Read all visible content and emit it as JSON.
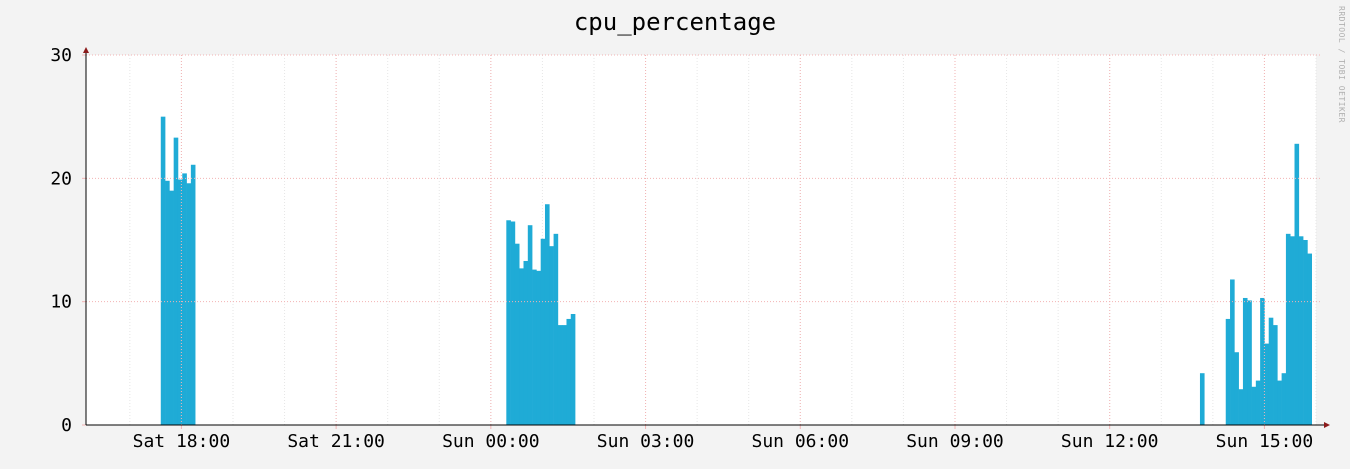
{
  "chart_data": {
    "type": "bar",
    "title": "cpu_percentage",
    "watermark": "RRDTOOL / TOBI OETIKER",
    "xlabel": "",
    "ylabel": "",
    "x_unit": "hours (timeline, Sat 16:15 to Sun 16:00)",
    "xlim": [
      16.15,
      40.0
    ],
    "ylim": [
      0,
      30
    ],
    "y_ticks": [
      "0",
      "10",
      "20",
      "30"
    ],
    "x_ticks": [
      {
        "label": "Sat 18:00",
        "value": 18
      },
      {
        "label": "Sat 21:00",
        "value": 21
      },
      {
        "label": "Sun 00:00",
        "value": 24
      },
      {
        "label": "Sun 03:00",
        "value": 27
      },
      {
        "label": "Sun 06:00",
        "value": 30
      },
      {
        "label": "Sun 09:00",
        "value": 33
      },
      {
        "label": "Sun 12:00",
        "value": 36
      },
      {
        "label": "Sun 15:00",
        "value": 39
      }
    ],
    "grid": true,
    "colors": {
      "bar": "#1fabd6",
      "grid": "#f2b3b3",
      "axis": "#000000",
      "arrow": "#8b1a1a",
      "background": "#f3f3f3",
      "plot_bg": "#ffffff"
    },
    "bar_width_hours": 0.08333,
    "series": [
      {
        "start": 17.6,
        "values": [
          25.0,
          19.8,
          19.0,
          23.3,
          19.9,
          20.4,
          19.6,
          21.1
        ]
      },
      {
        "start": 24.3,
        "values": [
          16.6,
          16.5,
          14.7,
          12.7,
          13.3,
          16.2,
          12.6,
          12.5,
          15.1,
          17.9,
          14.5,
          15.5,
          8.1,
          8.1,
          8.6,
          9.0
        ]
      },
      {
        "start": 37.75,
        "values": [
          4.2
        ]
      },
      {
        "start": 38.25,
        "values": [
          8.6,
          11.8,
          5.9,
          2.9,
          10.3,
          10.1,
          3.1,
          3.6,
          10.3,
          6.6,
          8.7,
          8.1,
          3.6,
          4.2,
          15.5,
          15.3,
          22.8,
          15.3,
          15.0,
          13.9
        ]
      }
    ]
  }
}
